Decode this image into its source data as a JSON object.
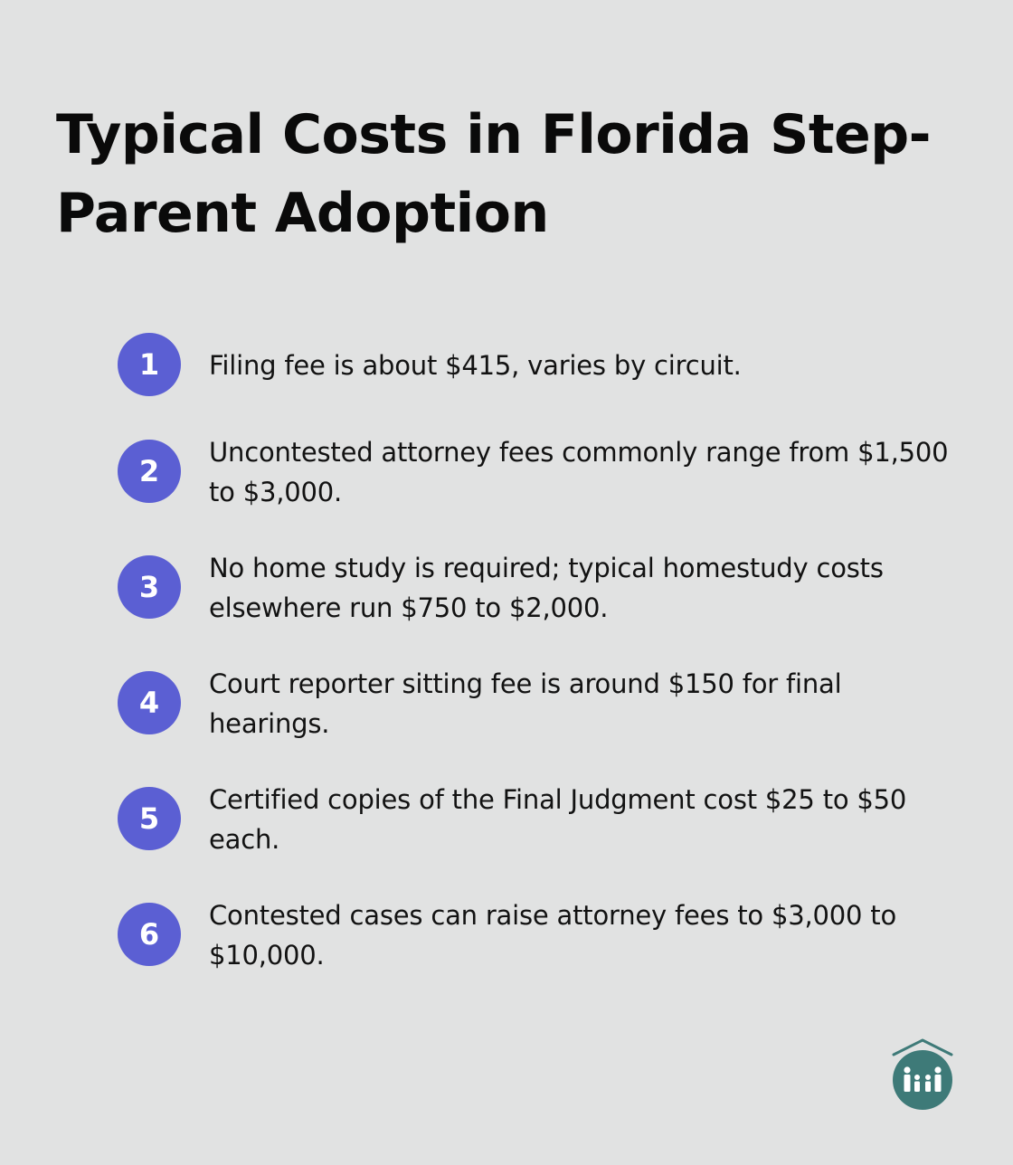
{
  "title": "Typical Costs in Florida Step-Parent Adoption",
  "accent_color": "#5b5fd3",
  "logo_color": "#3e7a78",
  "items": [
    {
      "number": "1",
      "text": "Filing fee is about $415, varies by circuit."
    },
    {
      "number": "2",
      "text": "Uncontested attorney fees commonly range from $1,500 to $3,000."
    },
    {
      "number": "3",
      "text": "No home study is required; typical homestudy costs elsewhere run $750 to $2,000."
    },
    {
      "number": "4",
      "text": "Court reporter sitting fee is around $150 for final hearings."
    },
    {
      "number": "5",
      "text": "Certified copies of the Final Judgment cost $25 to $50 each."
    },
    {
      "number": "6",
      "text": "Contested cases can raise attorney fees to $3,000 to $10,000."
    }
  ],
  "logo_icon": "family-house-icon"
}
